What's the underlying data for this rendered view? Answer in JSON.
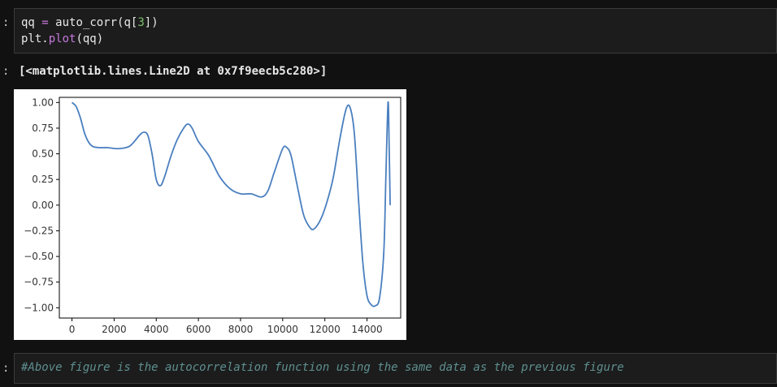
{
  "cells": {
    "cell1": {
      "prompt": ":",
      "code_line1": {
        "var": "qq",
        "op": "=",
        "fn": "auto_corr(q[",
        "num": "3",
        "close": "])"
      },
      "code_line2": {
        "obj": "plt.",
        "fn": "plot",
        "args": "(qq)"
      }
    },
    "output1": {
      "prompt": ":",
      "text": "[<matplotlib.lines.Line2D at 0x7f9eecb5c280>]"
    },
    "cell3": {
      "prompt": ":",
      "comment": "#Above figure is the autocorrelation function using the same data as the previous figure"
    }
  },
  "colors": {
    "line": "#4a7fbf",
    "background": "#111111",
    "keyword": "#c678dd",
    "number": "#7ec16e",
    "comment": "#5f8f8f"
  },
  "chart_data": {
    "type": "line",
    "title": "",
    "xlabel": "",
    "ylabel": "",
    "xlim": [
      -600,
      15600
    ],
    "ylim": [
      -1.1,
      1.05
    ],
    "xticks": [
      0,
      2000,
      4000,
      6000,
      8000,
      10000,
      12000,
      14000
    ],
    "yticks": [
      1.0,
      0.75,
      0.5,
      0.25,
      0.0,
      -0.25,
      -0.5,
      -0.75,
      -1.0
    ],
    "xtick_labels": [
      "0",
      "2000",
      "4000",
      "6000",
      "8000",
      "10000",
      "12000",
      "14000"
    ],
    "ytick_labels": [
      "1.00",
      "0.75",
      "0.50",
      "0.25",
      "0.00",
      "−0.25",
      "−0.50",
      "−0.75",
      "−1.00"
    ],
    "grid": false,
    "series": [
      {
        "x": [
          0,
          200,
          400,
          600,
          800,
          1000,
          1300,
          1700,
          2200,
          2700,
          3000,
          3200,
          3400,
          3600,
          3800,
          4000,
          4200,
          4400,
          4700,
          5000,
          5300,
          5500,
          5700,
          6000,
          6500,
          7000,
          7500,
          8000,
          8500,
          9000,
          9300,
          9600,
          10000,
          10200,
          10400,
          10700,
          11000,
          11300,
          11500,
          11800,
          12100,
          12400,
          12700,
          13000,
          13200,
          13400,
          13600,
          13800,
          14000,
          14200,
          14400,
          14600,
          14800,
          14900,
          15000,
          15050,
          15100
        ],
        "y": [
          1.0,
          0.96,
          0.85,
          0.7,
          0.61,
          0.57,
          0.56,
          0.56,
          0.55,
          0.57,
          0.63,
          0.68,
          0.71,
          0.68,
          0.5,
          0.25,
          0.19,
          0.28,
          0.48,
          0.64,
          0.75,
          0.79,
          0.75,
          0.62,
          0.48,
          0.28,
          0.16,
          0.11,
          0.11,
          0.08,
          0.14,
          0.32,
          0.55,
          0.56,
          0.48,
          0.18,
          -0.1,
          -0.22,
          -0.23,
          -0.14,
          0.03,
          0.27,
          0.63,
          0.93,
          0.95,
          0.7,
          0.05,
          -0.55,
          -0.88,
          -0.97,
          -0.98,
          -0.9,
          -0.45,
          0.3,
          1.0,
          0.6,
          0.0
        ]
      }
    ]
  }
}
